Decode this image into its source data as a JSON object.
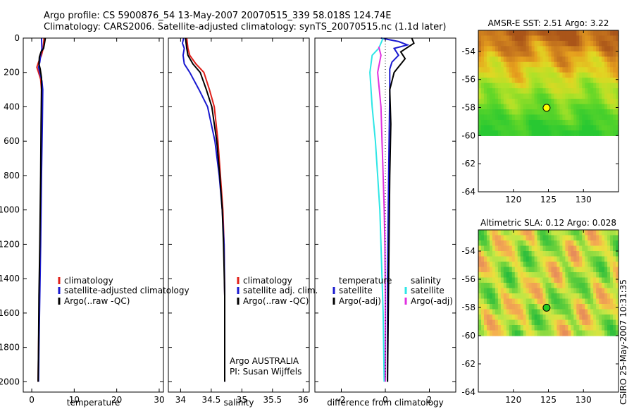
{
  "header": {
    "line1": "Argo profile: CS 5900876_54 13-May-2007 20070515_339 58.018S 124.74E",
    "line2": "Climatology: CARS2006. Satellite-adjusted climatology: synTS_20070515.nc (1.1d later)"
  },
  "credit": "CSIRO 25-May-2007 10:31:35",
  "colors": {
    "climatology": "#e0201a",
    "satellite": "#1a1ad0",
    "argo": "#000000",
    "satellite_salinity": "#2ee6e6",
    "argo_adj_salinity": "#e030e0",
    "marker_sst": "#ffff00",
    "marker_sla": "#22cc22"
  },
  "chart_data": [
    {
      "type": "line",
      "name": "temperature-panel",
      "xlabel": "temperature",
      "ylabel": "",
      "xlim": [
        -2,
        31
      ],
      "ylim": [
        2060,
        0
      ],
      "xticks": [
        0,
        10,
        20,
        30
      ],
      "yticks": [
        0,
        200,
        400,
        600,
        800,
        1000,
        1200,
        1400,
        1600,
        1800,
        2000
      ],
      "legend": [
        "climatology",
        "satellite-adjusted climatology",
        "Argo(..raw -QC)"
      ],
      "series": [
        {
          "name": "climatology",
          "color": "#e0201a",
          "points": [
            [
              2.9,
              0
            ],
            [
              2.7,
              60
            ],
            [
              2.3,
              100
            ],
            [
              1.6,
              140
            ],
            [
              1.2,
              170
            ],
            [
              1.6,
              200
            ],
            [
              2.1,
              240
            ],
            [
              2.3,
              300
            ],
            [
              2.3,
              500
            ],
            [
              2.2,
              800
            ],
            [
              2.0,
              1200
            ],
            [
              1.8,
              1500
            ],
            [
              1.6,
              1800
            ],
            [
              1.5,
              2000
            ]
          ]
        },
        {
          "name": "satellite-adjusted climatology",
          "color": "#1a1ad0",
          "points": [
            [
              2.3,
              0
            ],
            [
              2.4,
              60
            ],
            [
              2.1,
              100
            ],
            [
              1.9,
              140
            ],
            [
              1.6,
              170
            ],
            [
              1.9,
              200
            ],
            [
              2.4,
              250
            ],
            [
              2.6,
              300
            ],
            [
              2.5,
              500
            ],
            [
              2.3,
              800
            ],
            [
              2.1,
              1200
            ],
            [
              1.9,
              1500
            ],
            [
              1.7,
              1800
            ],
            [
              1.6,
              2000
            ]
          ]
        },
        {
          "name": "Argo(..raw -QC)",
          "color": "#000000",
          "points": [
            [
              3.2,
              0
            ],
            [
              3.0,
              30
            ],
            [
              2.8,
              60
            ],
            [
              2.2,
              80
            ],
            [
              1.8,
              110
            ],
            [
              1.7,
              150
            ],
            [
              2.0,
              180
            ],
            [
              2.3,
              230
            ],
            [
              2.3,
              300
            ],
            [
              2.2,
              500
            ],
            [
              2.1,
              800
            ],
            [
              1.9,
              1200
            ],
            [
              1.7,
              1500
            ],
            [
              1.6,
              1800
            ],
            [
              1.5,
              2000
            ]
          ]
        }
      ]
    },
    {
      "type": "line",
      "name": "salinity-panel",
      "xlabel": "salinity",
      "xlim": [
        33.8,
        36.1
      ],
      "ylim": [
        2060,
        0
      ],
      "xticks": [
        34,
        34.5,
        35,
        35.5,
        36
      ],
      "legend": [
        "climatology",
        "satellite adj. clim.",
        "Argo(..raw -QC)"
      ],
      "annotation": [
        "Argo AUSTRALIA",
        "PI: Susan Wijffels"
      ],
      "series": [
        {
          "name": "climatology",
          "color": "#e0201a",
          "points": [
            [
              34.1,
              0
            ],
            [
              34.12,
              60
            ],
            [
              34.15,
              100
            ],
            [
              34.25,
              150
            ],
            [
              34.38,
              200
            ],
            [
              34.47,
              300
            ],
            [
              34.55,
              400
            ],
            [
              34.61,
              600
            ],
            [
              34.65,
              800
            ],
            [
              34.69,
              1000
            ],
            [
              34.71,
              1200
            ],
            [
              34.72,
              1500
            ],
            [
              34.72,
              1800
            ],
            [
              34.72,
              2000
            ]
          ]
        },
        {
          "name": "satellite adj. clim.",
          "color": "#1a1ad0",
          "points": [
            [
              34.05,
              0
            ],
            [
              34.03,
              30
            ],
            [
              34.06,
              60
            ],
            [
              34.04,
              100
            ],
            [
              34.06,
              150
            ],
            [
              34.15,
              200
            ],
            [
              34.3,
              300
            ],
            [
              34.44,
              400
            ],
            [
              34.56,
              600
            ],
            [
              34.63,
              800
            ],
            [
              34.68,
              1000
            ],
            [
              34.71,
              1200
            ],
            [
              34.72,
              1500
            ],
            [
              34.72,
              1800
            ],
            [
              34.72,
              2000
            ]
          ]
        },
        {
          "name": "Argo(..raw -QC)",
          "color": "#000000",
          "points": [
            [
              34.08,
              0
            ],
            [
              34.1,
              60
            ],
            [
              34.12,
              100
            ],
            [
              34.2,
              150
            ],
            [
              34.32,
              200
            ],
            [
              34.42,
              300
            ],
            [
              34.51,
              400
            ],
            [
              34.59,
              600
            ],
            [
              34.64,
              800
            ],
            [
              34.68,
              1000
            ],
            [
              34.7,
              1200
            ],
            [
              34.72,
              1500
            ],
            [
              34.72,
              1800
            ],
            [
              34.72,
              2000
            ]
          ]
        }
      ]
    },
    {
      "type": "line",
      "name": "difference-panel",
      "xlabel": "difference from climatology",
      "xlim": [
        -3.2,
        3.2
      ],
      "ylim": [
        2060,
        0
      ],
      "xticks": [
        -2,
        0,
        2
      ],
      "legend_left_title": "temperature",
      "legend_right_title": "salinity",
      "legend_left": [
        "satellite",
        "Argo(-adj)"
      ],
      "legend_right": [
        "satellite",
        "Argo(-adj)"
      ],
      "series": [
        {
          "name": "temperature satellite",
          "color": "#1a1ad0",
          "points": [
            [
              -0.2,
              0
            ],
            [
              0.6,
              20
            ],
            [
              1.0,
              40
            ],
            [
              0.4,
              60
            ],
            [
              0.6,
              100
            ],
            [
              0.3,
              140
            ],
            [
              0.2,
              180
            ],
            [
              0.2,
              300
            ],
            [
              0.15,
              800
            ],
            [
              0.1,
              1400
            ],
            [
              0.1,
              2000
            ]
          ]
        },
        {
          "name": "temperature Argo(-adj)",
          "color": "#000000",
          "points": [
            [
              1.2,
              0
            ],
            [
              1.3,
              30
            ],
            [
              0.7,
              80
            ],
            [
              0.9,
              120
            ],
            [
              0.4,
              200
            ],
            [
              0.2,
              300
            ],
            [
              0.25,
              500
            ],
            [
              0.2,
              800
            ],
            [
              0.15,
              1400
            ],
            [
              0.1,
              2000
            ]
          ]
        },
        {
          "name": "salinity satellite",
          "color": "#2ee6e6",
          "points": [
            [
              -0.1,
              0
            ],
            [
              -0.3,
              60
            ],
            [
              -0.6,
              100
            ],
            [
              -0.7,
              200
            ],
            [
              -0.6,
              400
            ],
            [
              -0.45,
              600
            ],
            [
              -0.35,
              800
            ],
            [
              -0.25,
              1000
            ],
            [
              -0.2,
              1200
            ],
            [
              -0.1,
              1600
            ],
            [
              -0.05,
              2000
            ]
          ]
        },
        {
          "name": "salinity Argo(-adj)",
          "color": "#e030e0",
          "points": [
            [
              -0.3,
              50
            ],
            [
              -0.2,
              100
            ],
            [
              -0.35,
              200
            ],
            [
              -0.2,
              400
            ],
            [
              -0.15,
              600
            ],
            [
              -0.1,
              800
            ],
            [
              -0.05,
              1000
            ],
            [
              -0.02,
              1200
            ],
            [
              0,
              1500
            ],
            [
              0,
              2000
            ]
          ]
        }
      ]
    },
    {
      "type": "heatmap",
      "name": "sst-map",
      "title": "AMSR-E SST: 2.51 Argo: 3.22",
      "xlim": [
        115,
        135
      ],
      "ylim": [
        -64,
        -52.5
      ],
      "xticks": [
        120,
        125,
        130
      ],
      "yticks": [
        -54,
        -56,
        -58,
        -60,
        -62,
        -64
      ],
      "data_lat_range": [
        -60,
        -52.5
      ],
      "marker": {
        "lon": 124.74,
        "lat": -58.018
      }
    },
    {
      "type": "heatmap",
      "name": "sla-map",
      "title": "Altimetric SLA: 0.12 Argo: 0.028",
      "xlim": [
        115,
        135
      ],
      "ylim": [
        -64,
        -52.5
      ],
      "xticks": [
        120,
        125,
        130
      ],
      "yticks": [
        -54,
        -56,
        -58,
        -60,
        -62,
        -64
      ],
      "data_lat_range": [
        -60,
        -52.5
      ],
      "marker": {
        "lon": 124.74,
        "lat": -58.018
      }
    }
  ]
}
